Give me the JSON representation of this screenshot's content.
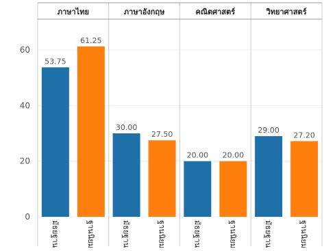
{
  "chart_data": {
    "type": "bar",
    "facets": [
      "ภาษาไทย",
      "ภาษาอังกฤษ",
      "คณิตศาสตร์",
      "วิทยาศาสตร์"
    ],
    "categories": [
      "มัธยฐาน",
      "ฐานนิยม"
    ],
    "values": [
      [
        53.75,
        61.25
      ],
      [
        30.0,
        27.5
      ],
      [
        20.0,
        20.0
      ],
      [
        29.0,
        27.2
      ]
    ],
    "value_labels": [
      [
        "53.75",
        "61.25"
      ],
      [
        "30.00",
        "27.50"
      ],
      [
        "20.00",
        "20.00"
      ],
      [
        "29.00",
        "27.20"
      ]
    ],
    "colors": [
      "#1f6fa8",
      "#ff7f0e"
    ],
    "y_ticks": [
      0,
      20,
      40,
      60
    ],
    "ylim": [
      0,
      65
    ],
    "grid": true,
    "title": "",
    "xlabel": "",
    "ylabel": ""
  }
}
